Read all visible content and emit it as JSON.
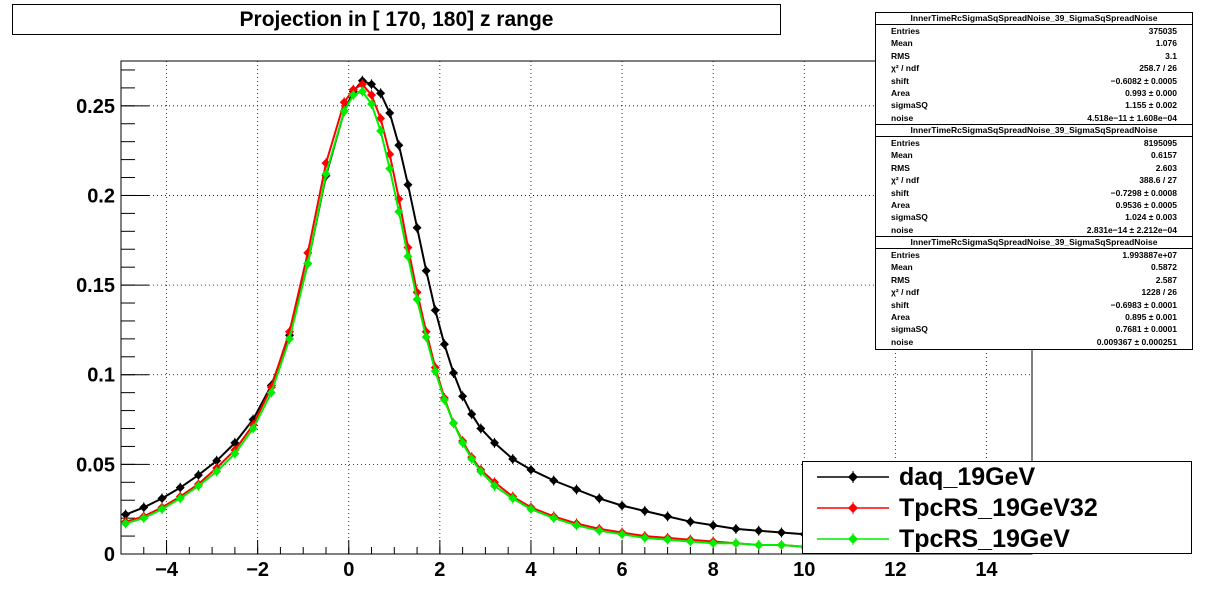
{
  "title": "Projection in [ 170, 180] z range",
  "chart_data": {
    "type": "scatter",
    "xlim": [
      -5,
      15
    ],
    "ylim": [
      0,
      0.275
    ],
    "x_ticks": [
      "−4",
      "−2",
      "0",
      "2",
      "4",
      "6",
      "8",
      "10",
      "12",
      "14"
    ],
    "y_ticks": [
      "0",
      "0.05",
      "0.1",
      "0.15",
      "0.2",
      "0.25"
    ],
    "grid": true,
    "legend_position": "bottom-right",
    "series": [
      {
        "name": "daq_19GeV",
        "color": "#000000",
        "fit": {
          "shift": -0.6082,
          "sigmaSQ": 1.155,
          "area": 0.993,
          "noise": 0
        },
        "points": [
          [
            -4.9,
            0.022
          ],
          [
            -4.5,
            0.026
          ],
          [
            -4.1,
            0.031
          ],
          [
            -3.7,
            0.037
          ],
          [
            -3.3,
            0.044
          ],
          [
            -2.9,
            0.052
          ],
          [
            -2.5,
            0.062
          ],
          [
            -2.1,
            0.075
          ],
          [
            -1.7,
            0.094
          ],
          [
            -1.3,
            0.122
          ],
          [
            -0.9,
            0.162
          ],
          [
            -0.5,
            0.211
          ],
          [
            -0.1,
            0.247
          ],
          [
            0.1,
            0.258
          ],
          [
            0.3,
            0.264
          ],
          [
            0.5,
            0.262
          ],
          [
            0.7,
            0.257
          ],
          [
            0.9,
            0.246
          ],
          [
            1.1,
            0.228
          ],
          [
            1.3,
            0.206
          ],
          [
            1.5,
            0.182
          ],
          [
            1.7,
            0.158
          ],
          [
            1.9,
            0.136
          ],
          [
            2.1,
            0.117
          ],
          [
            2.3,
            0.101
          ],
          [
            2.5,
            0.088
          ],
          [
            2.7,
            0.078
          ],
          [
            2.9,
            0.07
          ],
          [
            3.2,
            0.062
          ],
          [
            3.6,
            0.053
          ],
          [
            4.0,
            0.047
          ],
          [
            4.5,
            0.041
          ],
          [
            5.0,
            0.036
          ],
          [
            5.5,
            0.031
          ],
          [
            6.0,
            0.027
          ],
          [
            6.5,
            0.024
          ],
          [
            7.0,
            0.021
          ],
          [
            7.5,
            0.018
          ],
          [
            8.0,
            0.016
          ],
          [
            8.5,
            0.014
          ],
          [
            9.0,
            0.013
          ],
          [
            9.5,
            0.012
          ],
          [
            10.0,
            0.011
          ]
        ]
      },
      {
        "name": "TpcRS_19GeV32",
        "color": "#ff0000",
        "fit": {
          "shift": -0.7298,
          "sigmaSQ": 1.024,
          "area": 0.9536,
          "noise": 0
        },
        "points": [
          [
            -4.9,
            0.018
          ],
          [
            -4.5,
            0.021
          ],
          [
            -4.1,
            0.026
          ],
          [
            -3.7,
            0.032
          ],
          [
            -3.3,
            0.039
          ],
          [
            -2.9,
            0.048
          ],
          [
            -2.5,
            0.058
          ],
          [
            -2.1,
            0.072
          ],
          [
            -1.7,
            0.093
          ],
          [
            -1.3,
            0.124
          ],
          [
            -0.9,
            0.168
          ],
          [
            -0.5,
            0.218
          ],
          [
            -0.1,
            0.252
          ],
          [
            0.1,
            0.259
          ],
          [
            0.3,
            0.262
          ],
          [
            0.5,
            0.256
          ],
          [
            0.7,
            0.243
          ],
          [
            0.9,
            0.223
          ],
          [
            1.1,
            0.198
          ],
          [
            1.3,
            0.171
          ],
          [
            1.5,
            0.146
          ],
          [
            1.7,
            0.124
          ],
          [
            1.9,
            0.104
          ],
          [
            2.1,
            0.087
          ],
          [
            2.3,
            0.073
          ],
          [
            2.5,
            0.063
          ],
          [
            2.7,
            0.054
          ],
          [
            2.9,
            0.047
          ],
          [
            3.2,
            0.04
          ],
          [
            3.6,
            0.032
          ],
          [
            4.0,
            0.026
          ],
          [
            4.5,
            0.021
          ],
          [
            5.0,
            0.017
          ],
          [
            5.5,
            0.014
          ],
          [
            6.0,
            0.012
          ],
          [
            6.5,
            0.01
          ],
          [
            7.0,
            0.009
          ],
          [
            7.5,
            0.008
          ],
          [
            8.0,
            0.007
          ],
          [
            8.5,
            0.006
          ],
          [
            9.0,
            0.005
          ],
          [
            9.5,
            0.005
          ],
          [
            10.0,
            0.004
          ]
        ]
      },
      {
        "name": "TpcRS_19GeV",
        "color": "#00ee00",
        "fit": {
          "shift": -0.6983,
          "sigmaSQ": 0.7681,
          "area": 0.895,
          "noise": 0.009367
        },
        "points": [
          [
            -4.9,
            0.017
          ],
          [
            -4.5,
            0.02
          ],
          [
            -4.1,
            0.025
          ],
          [
            -3.7,
            0.031
          ],
          [
            -3.3,
            0.038
          ],
          [
            -2.9,
            0.046
          ],
          [
            -2.5,
            0.056
          ],
          [
            -2.1,
            0.07
          ],
          [
            -1.7,
            0.09
          ],
          [
            -1.3,
            0.12
          ],
          [
            -0.9,
            0.162
          ],
          [
            -0.5,
            0.212
          ],
          [
            -0.1,
            0.247
          ],
          [
            0.1,
            0.256
          ],
          [
            0.3,
            0.258
          ],
          [
            0.5,
            0.251
          ],
          [
            0.7,
            0.236
          ],
          [
            0.9,
            0.215
          ],
          [
            1.1,
            0.191
          ],
          [
            1.3,
            0.166
          ],
          [
            1.5,
            0.142
          ],
          [
            1.7,
            0.121
          ],
          [
            1.9,
            0.102
          ],
          [
            2.1,
            0.086
          ],
          [
            2.3,
            0.073
          ],
          [
            2.5,
            0.062
          ],
          [
            2.7,
            0.053
          ],
          [
            2.9,
            0.046
          ],
          [
            3.2,
            0.038
          ],
          [
            3.6,
            0.031
          ],
          [
            4.0,
            0.025
          ],
          [
            4.5,
            0.02
          ],
          [
            5.0,
            0.016
          ],
          [
            5.5,
            0.013
          ],
          [
            6.0,
            0.011
          ],
          [
            6.5,
            0.009
          ],
          [
            7.0,
            0.008
          ],
          [
            7.5,
            0.007
          ],
          [
            8.0,
            0.006
          ],
          [
            8.5,
            0.006
          ],
          [
            9.0,
            0.005
          ],
          [
            9.5,
            0.005
          ],
          [
            10.0,
            0.004
          ]
        ]
      }
    ]
  },
  "stats": [
    {
      "header": "InnerTimeRcSigmaSqSpreadNoise_39_SigmaSqSpreadNoise",
      "rows": [
        {
          "k": "Entries",
          "v": "375035"
        },
        {
          "k": "Mean",
          "v": "1.076"
        },
        {
          "k": "RMS",
          "v": "3.1"
        },
        {
          "k": "χ² / ndf",
          "v": "258.7 / 26"
        },
        {
          "k": "shift",
          "v": "−0.6082 ± 0.0005"
        },
        {
          "k": "Area",
          "v": "0.993 ± 0.000"
        },
        {
          "k": "sigmaSQ",
          "v": "1.155 ± 0.002"
        },
        {
          "k": "noise",
          "v": "4.518e−11 ± 1.608e−04"
        }
      ]
    },
    {
      "header": "InnerTimeRcSigmaSqSpreadNoise_39_SigmaSqSpreadNoise",
      "rows": [
        {
          "k": "Entries",
          "v": "8195095"
        },
        {
          "k": "Mean",
          "v": "0.6157"
        },
        {
          "k": "RMS",
          "v": "2.603"
        },
        {
          "k": "χ² / ndf",
          "v": "388.6 / 27"
        },
        {
          "k": "shift",
          "v": "−0.7298 ± 0.0008"
        },
        {
          "k": "Area",
          "v": "0.9536 ± 0.0005"
        },
        {
          "k": "sigmaSQ",
          "v": "1.024 ± 0.003"
        },
        {
          "k": "noise",
          "v": "2.831e−14 ± 2.212e−04"
        }
      ]
    },
    {
      "header": "InnerTimeRcSigmaSqSpreadNoise_39_SigmaSqSpreadNoise",
      "rows": [
        {
          "k": "Entries",
          "v": "1.993887e+07"
        },
        {
          "k": "Mean",
          "v": "0.5872"
        },
        {
          "k": "RMS",
          "v": "2.587"
        },
        {
          "k": "χ² / ndf",
          "v": "1228 / 26"
        },
        {
          "k": "shift",
          "v": "−0.6983 ± 0.0001"
        },
        {
          "k": "Area",
          "v": "0.895 ± 0.001"
        },
        {
          "k": "sigmaSQ",
          "v": "0.7681 ± 0.0001"
        },
        {
          "k": "noise",
          "v": "0.009367 ± 0.000251"
        }
      ]
    }
  ]
}
